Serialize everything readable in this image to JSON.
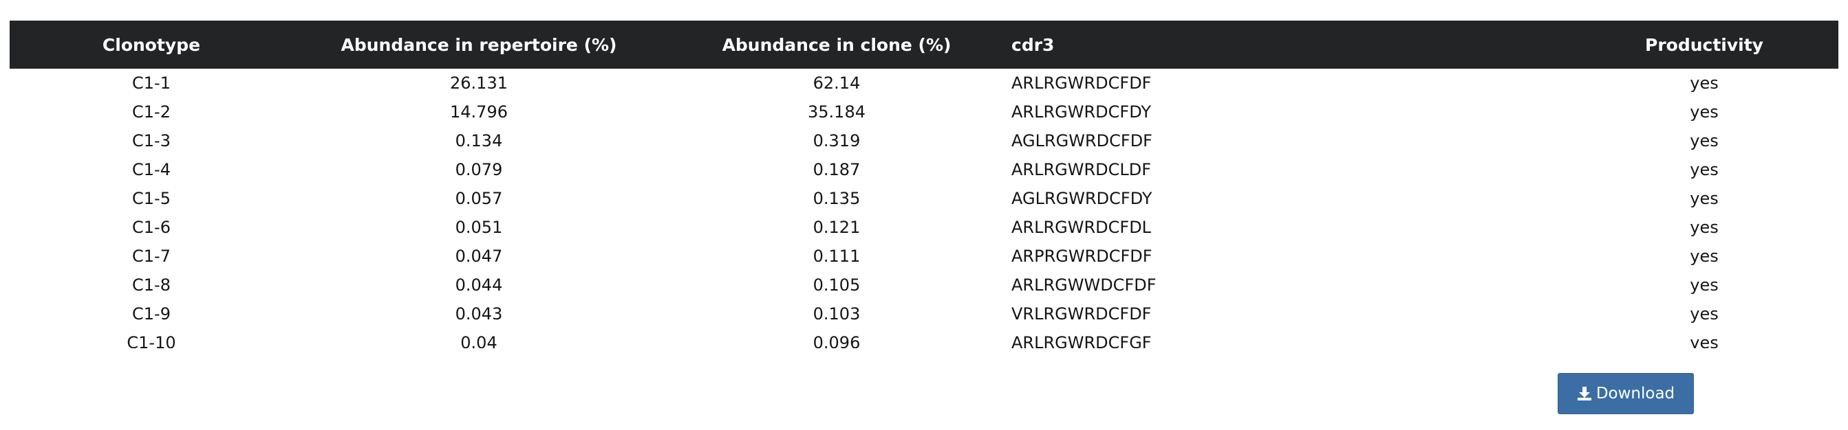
{
  "table": {
    "columns": [
      "Clonotype",
      "Abundance in repertoire (%)",
      "Abundance in clone (%)",
      "cdr3",
      "Productivity"
    ],
    "rows": [
      [
        "C1-1",
        "26.131",
        "62.14",
        "ARLRGWRDCFDF",
        "yes"
      ],
      [
        "C1-2",
        "14.796",
        "35.184",
        "ARLRGWRDCFDY",
        "yes"
      ],
      [
        "C1-3",
        "0.134",
        "0.319",
        "AGLRGWRDCFDF",
        "yes"
      ],
      [
        "C1-4",
        "0.079",
        "0.187",
        "ARLRGWRDCLDF",
        "yes"
      ],
      [
        "C1-5",
        "0.057",
        "0.135",
        "AGLRGWRDCFDY",
        "yes"
      ],
      [
        "C1-6",
        "0.051",
        "0.121",
        "ARLRGWRDCFDL",
        "yes"
      ],
      [
        "C1-7",
        "0.047",
        "0.111",
        "ARPRGWRDCFDF",
        "yes"
      ],
      [
        "C1-8",
        "0.044",
        "0.105",
        "ARLRGWWDCFDF",
        "yes"
      ],
      [
        "C1-9",
        "0.043",
        "0.103",
        "VRLRGWRDCFDF",
        "yes"
      ],
      [
        "C1-10",
        "0.04",
        "0.096",
        "ARLRGWRDCFGF",
        "yes"
      ]
    ]
  },
  "download": {
    "label": "Download",
    "icon": "download-icon",
    "color": "#3a6ea5"
  }
}
